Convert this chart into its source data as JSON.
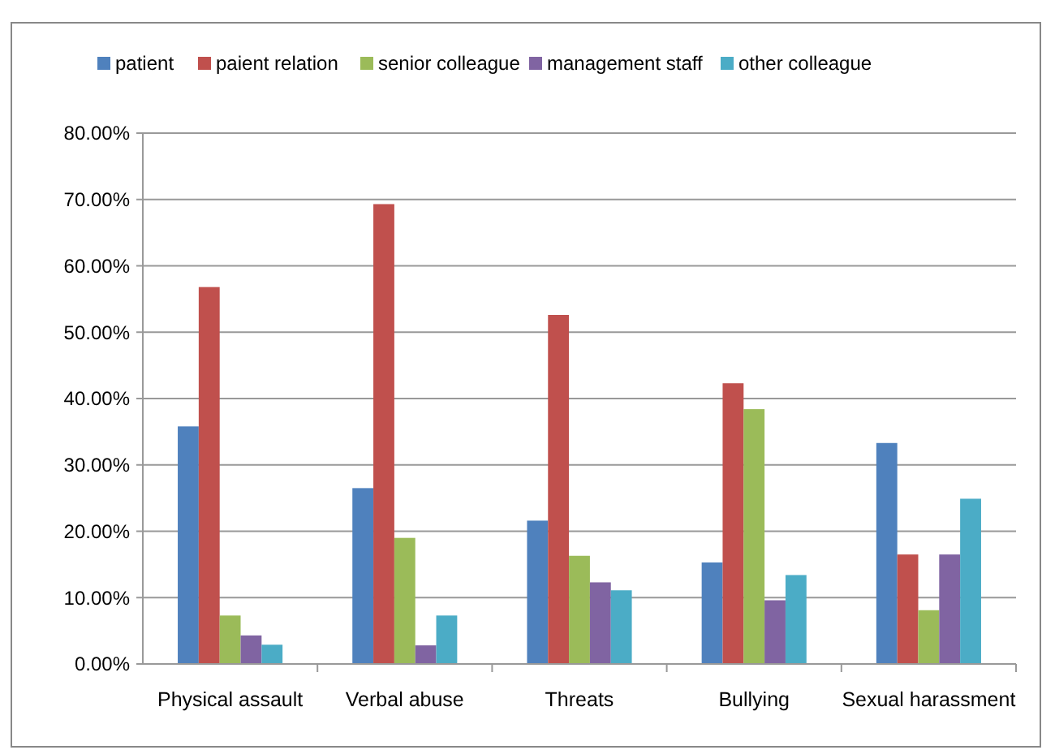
{
  "chart_data": {
    "type": "bar",
    "categories": [
      "Physical assault",
      "Verbal abuse",
      "Threats",
      "Bullying",
      "Sexual harassment"
    ],
    "series": [
      {
        "name": "patient",
        "color": "#4f81bd",
        "values": [
          35.8,
          26.5,
          21.6,
          15.3,
          33.3
        ]
      },
      {
        "name": "paient relation",
        "color": "#c0504d",
        "values": [
          56.8,
          69.3,
          52.6,
          42.3,
          16.5
        ]
      },
      {
        "name": "senior colleague",
        "color": "#9bbb59",
        "values": [
          7.3,
          19.0,
          16.3,
          38.4,
          8.1
        ]
      },
      {
        "name": "management staff",
        "color": "#8064a2",
        "values": [
          4.3,
          2.8,
          12.3,
          9.6,
          16.5
        ]
      },
      {
        "name": "other colleague",
        "color": "#4bacc6",
        "values": [
          2.9,
          7.3,
          11.1,
          13.4,
          24.9
        ]
      }
    ],
    "ylim": [
      0,
      80
    ],
    "yticks": [
      {
        "value": 0,
        "label": "0.00%"
      },
      {
        "value": 10,
        "label": "10.00%"
      },
      {
        "value": 20,
        "label": "20.00%"
      },
      {
        "value": 30,
        "label": "30.00%"
      },
      {
        "value": 40,
        "label": "40.00%"
      },
      {
        "value": 50,
        "label": "50.00%"
      },
      {
        "value": 60,
        "label": "60.00%"
      },
      {
        "value": 70,
        "label": "70.00%"
      },
      {
        "value": 80,
        "label": "80.00%"
      }
    ],
    "grid": "y",
    "legend": "top"
  }
}
